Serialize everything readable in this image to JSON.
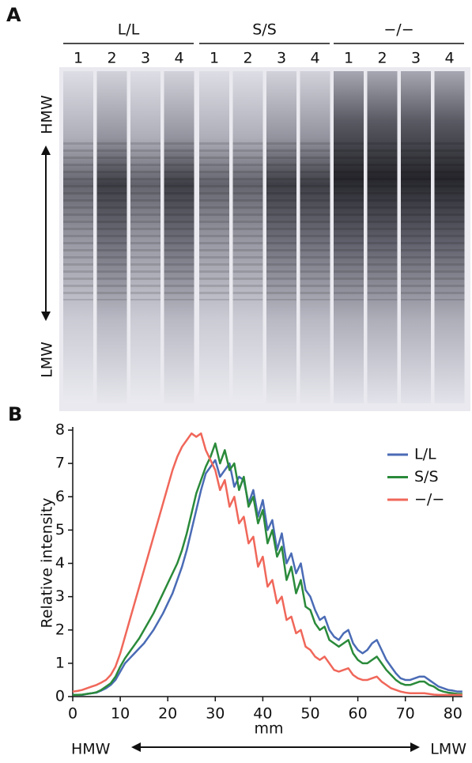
{
  "panel_a": {
    "label": "A",
    "groups": [
      {
        "name": "L/L",
        "lanes": [
          "1",
          "2",
          "3",
          "4"
        ]
      },
      {
        "name": "S/S",
        "lanes": [
          "1",
          "2",
          "3",
          "4"
        ]
      },
      {
        "name": "−/−",
        "lanes": [
          "1",
          "2",
          "3",
          "4"
        ]
      }
    ],
    "axis_top": "HMW",
    "axis_bottom": "LMW"
  },
  "chart_data": {
    "type": "line",
    "panel_label": "B",
    "ylabel": "Relative intensity",
    "xlabel": "mm",
    "x_start_label": "HMW",
    "x_end_label": "LMW",
    "x": [
      0,
      1,
      2,
      3,
      4,
      5,
      6,
      7,
      8,
      9,
      10,
      11,
      12,
      13,
      14,
      15,
      16,
      17,
      18,
      19,
      20,
      21,
      22,
      23,
      24,
      25,
      26,
      27,
      28,
      29,
      30,
      31,
      32,
      33,
      34,
      35,
      36,
      37,
      38,
      39,
      40,
      41,
      42,
      43,
      44,
      45,
      46,
      47,
      48,
      49,
      50,
      51,
      52,
      53,
      54,
      55,
      56,
      57,
      58,
      59,
      60,
      61,
      62,
      63,
      64,
      65,
      66,
      67,
      68,
      69,
      70,
      71,
      72,
      73,
      74,
      75,
      76,
      77,
      78,
      79,
      80,
      81,
      82
    ],
    "series": [
      {
        "name": "L/L",
        "color": "#4a6bb5",
        "values": [
          0.05,
          0.05,
          0.05,
          0.08,
          0.1,
          0.12,
          0.18,
          0.25,
          0.35,
          0.5,
          0.75,
          1.0,
          1.15,
          1.3,
          1.45,
          1.6,
          1.8,
          2.0,
          2.25,
          2.5,
          2.8,
          3.1,
          3.5,
          3.9,
          4.4,
          5.0,
          5.6,
          6.2,
          6.7,
          6.9,
          7.1,
          6.6,
          6.8,
          7.0,
          6.3,
          6.6,
          6.5,
          5.8,
          6.2,
          5.4,
          5.9,
          5.0,
          5.3,
          4.4,
          4.9,
          4.0,
          4.3,
          3.7,
          4.0,
          3.2,
          3.0,
          2.6,
          2.3,
          2.4,
          2.0,
          1.8,
          1.7,
          1.9,
          2.0,
          1.6,
          1.4,
          1.3,
          1.4,
          1.6,
          1.7,
          1.4,
          1.1,
          0.9,
          0.7,
          0.55,
          0.5,
          0.5,
          0.55,
          0.6,
          0.6,
          0.5,
          0.4,
          0.3,
          0.25,
          0.2,
          0.18,
          0.15,
          0.15
        ]
      },
      {
        "name": "S/S",
        "color": "#2a8a3a",
        "values": [
          0.05,
          0.05,
          0.06,
          0.08,
          0.1,
          0.13,
          0.2,
          0.3,
          0.4,
          0.6,
          0.9,
          1.15,
          1.35,
          1.55,
          1.75,
          2.0,
          2.25,
          2.5,
          2.8,
          3.1,
          3.4,
          3.7,
          4.0,
          4.4,
          4.9,
          5.5,
          6.1,
          6.5,
          6.9,
          7.2,
          7.6,
          7.0,
          7.4,
          6.8,
          7.0,
          6.2,
          6.6,
          5.7,
          6.0,
          5.2,
          5.6,
          4.6,
          5.0,
          4.2,
          4.5,
          3.5,
          3.9,
          3.1,
          3.5,
          2.7,
          2.6,
          2.2,
          2.0,
          2.1,
          1.7,
          1.6,
          1.5,
          1.6,
          1.7,
          1.3,
          1.1,
          1.0,
          1.0,
          1.1,
          1.2,
          1.0,
          0.8,
          0.65,
          0.5,
          0.4,
          0.35,
          0.35,
          0.4,
          0.45,
          0.45,
          0.35,
          0.3,
          0.2,
          0.15,
          0.12,
          0.1,
          0.08,
          0.08
        ]
      },
      {
        "name": "−/−",
        "color": "#f0675a",
        "values": [
          0.15,
          0.17,
          0.2,
          0.25,
          0.3,
          0.35,
          0.42,
          0.5,
          0.65,
          0.9,
          1.3,
          1.8,
          2.3,
          2.8,
          3.3,
          3.8,
          4.3,
          4.8,
          5.3,
          5.8,
          6.3,
          6.8,
          7.2,
          7.5,
          7.7,
          7.9,
          7.8,
          7.9,
          7.4,
          7.1,
          6.8,
          6.2,
          6.5,
          5.7,
          6.0,
          5.2,
          5.4,
          4.6,
          4.8,
          3.9,
          4.2,
          3.3,
          3.5,
          2.8,
          3.0,
          2.3,
          2.4,
          1.9,
          2.0,
          1.5,
          1.4,
          1.2,
          1.1,
          1.2,
          1.0,
          0.8,
          0.75,
          0.8,
          0.85,
          0.65,
          0.55,
          0.5,
          0.5,
          0.55,
          0.6,
          0.45,
          0.35,
          0.25,
          0.2,
          0.15,
          0.12,
          0.1,
          0.1,
          0.1,
          0.1,
          0.08,
          0.06,
          0.05,
          0.05,
          0.05,
          0.05,
          0.05,
          0.05
        ]
      }
    ],
    "xlim": [
      0,
      82
    ],
    "xticks": [
      0,
      10,
      20,
      30,
      40,
      50,
      60,
      70,
      80
    ],
    "ylim": [
      0,
      8
    ],
    "yticks": [
      0,
      1,
      2,
      3,
      4,
      5,
      6,
      7,
      8
    ]
  }
}
